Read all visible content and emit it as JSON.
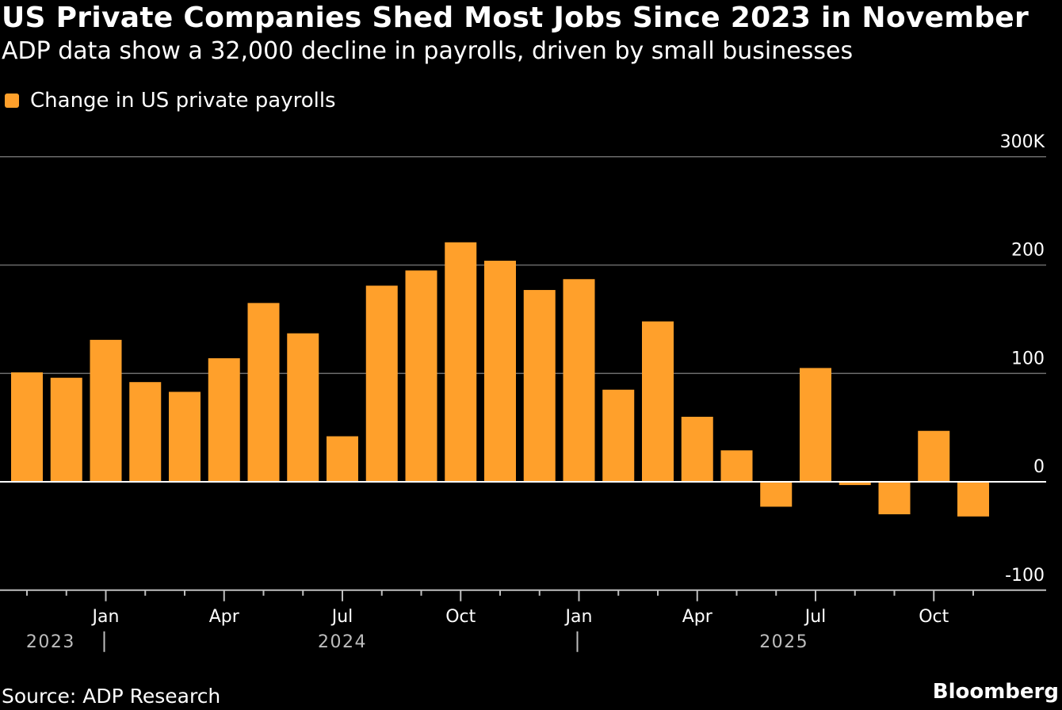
{
  "header": {
    "title": "US Private Companies Shed Most Jobs Since 2023 in November",
    "subtitle": "ADP data show a 32,000 decline in payrolls, driven by small businesses"
  },
  "legend": {
    "label": "Change in US private payrolls"
  },
  "footer": {
    "source": "Source: ADP Research",
    "brand": "Bloomberg"
  },
  "colors": {
    "bar": "#ffa02b",
    "background": "#000000",
    "grid": "#6b6b6b",
    "text": "#ffffff",
    "axis_text": "#bdbdbd"
  },
  "chart_data": {
    "type": "bar",
    "series": [
      {
        "name": "Change in US private payrolls",
        "values": [
          101,
          96,
          131,
          92,
          83,
          114,
          165,
          137,
          42,
          181,
          195,
          221,
          204,
          177,
          187,
          85,
          148,
          60,
          29,
          -23,
          105,
          -3,
          -30,
          47,
          -32
        ]
      }
    ],
    "categories": [
      "Nov 2023",
      "Dec 2023",
      "Jan 2024",
      "Feb 2024",
      "Mar 2024",
      "Apr 2024",
      "May 2024",
      "Jun 2024",
      "Jul 2024",
      "Aug 2024",
      "Sep 2024",
      "Oct 2024",
      "Nov 2024",
      "Dec 2024",
      "Jan 2025",
      "Feb 2025",
      "Mar 2025",
      "Apr 2025",
      "May 2025",
      "Jun 2025",
      "Jul 2025",
      "Aug 2025",
      "Sep 2025",
      "Oct 2025",
      "Nov 2025"
    ],
    "ylim": [
      -100,
      300
    ],
    "yticks": [
      {
        "value": 300,
        "label": "300K"
      },
      {
        "value": 200,
        "label": "200"
      },
      {
        "value": 100,
        "label": "100"
      },
      {
        "value": 0,
        "label": "0"
      },
      {
        "value": -100,
        "label": "-100"
      }
    ],
    "month_labels": [
      {
        "index": 2,
        "label": "Jan"
      },
      {
        "index": 5,
        "label": "Apr"
      },
      {
        "index": 8,
        "label": "Jul"
      },
      {
        "index": 11,
        "label": "Oct"
      },
      {
        "index": 14,
        "label": "Jan"
      },
      {
        "index": 17,
        "label": "Apr"
      },
      {
        "index": 20,
        "label": "Jul"
      },
      {
        "index": 23,
        "label": "Oct"
      }
    ],
    "year_labels": [
      {
        "index": 0.6,
        "label": "2023"
      },
      {
        "index": 8.0,
        "label": "2024"
      },
      {
        "index": 19.2,
        "label": "2025"
      }
    ],
    "year_separators": [
      2,
      14
    ],
    "xlabel": "",
    "ylabel": "",
    "grid": true,
    "y_axis_position": "right",
    "legend_position": "top-left"
  }
}
